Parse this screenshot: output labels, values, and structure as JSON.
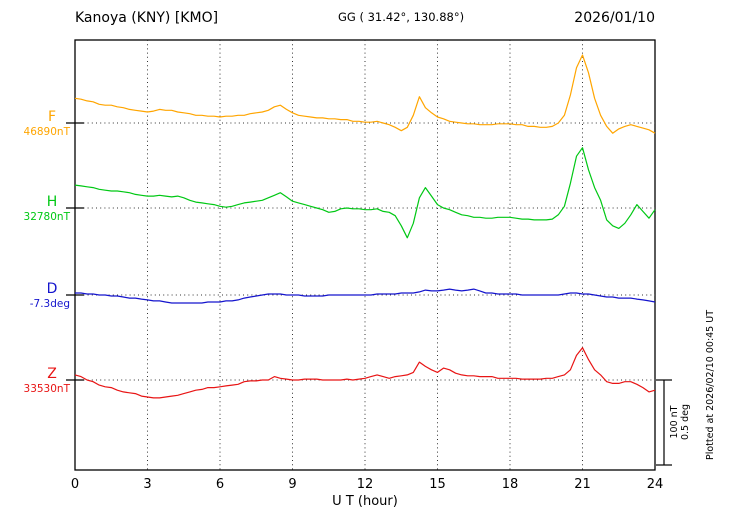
{
  "header": {
    "station": "Kanoya (KNY)  [KMO]",
    "coords": "GG ( 31.42°, 130.88°)",
    "date": "2026/01/10"
  },
  "axes": {
    "x_label": "U T (hour)"
  },
  "scale_bar": {
    "line1": "100 nT",
    "line2": "0.5 deg"
  },
  "footer_note": "Plotted at 2026/02/10 00:45 UT",
  "colors": {
    "F": "#ffa500",
    "H": "#00c814",
    "D": "#1414cd",
    "Z": "#e81414",
    "grid": "#333333",
    "frame": "#000000"
  },
  "chart_data": {
    "type": "line",
    "title": "Kanoya (KNY) [KMO] geomagnetic field variations 2026/01/10",
    "xlabel": "U T (hour)",
    "x_ticks": [
      0,
      3,
      6,
      9,
      12,
      15,
      18,
      21,
      24
    ],
    "x_range_hours": [
      0,
      24
    ],
    "sample_step_hours": 0.25,
    "grid": "dotted vertical every 3 h; dotted horizontal baseline per component",
    "legend_position": "left margin component labels",
    "scale_per_division": {
      "nT": 100,
      "deg": 0.5
    },
    "series": [
      {
        "name": "F",
        "unit": "nT",
        "baseline_value": 46890,
        "baseline_label": "46890nT",
        "color_key": "F",
        "offsets_from_baseline": [
          29,
          28,
          26,
          25,
          22,
          21,
          21,
          19,
          18,
          16,
          15,
          14,
          13,
          14,
          16,
          15,
          15,
          13,
          12,
          11,
          9,
          9,
          8,
          8,
          7,
          8,
          8,
          9,
          9,
          11,
          12,
          13,
          15,
          19,
          21,
          16,
          12,
          9,
          8,
          7,
          6,
          6,
          5,
          5,
          4,
          4,
          2,
          2,
          1,
          1,
          2,
          0,
          -2,
          -5,
          -9,
          -5,
          9,
          31,
          18,
          12,
          7,
          5,
          2,
          1,
          0,
          -1,
          -1,
          -2,
          -2,
          -2,
          -1,
          -1,
          -1,
          -2,
          -2,
          -4,
          -4,
          -5,
          -5,
          -4,
          0,
          9,
          33,
          65,
          80,
          59,
          29,
          9,
          -4,
          -12,
          -7,
          -4,
          -2,
          -4,
          -6,
          -8,
          -12
        ]
      },
      {
        "name": "H",
        "unit": "nT",
        "baseline_value": 32780,
        "baseline_label": "32780nT",
        "color_key": "H",
        "offsets_from_baseline": [
          27,
          26,
          25,
          24,
          22,
          21,
          20,
          20,
          19,
          18,
          16,
          15,
          14,
          14,
          15,
          14,
          13,
          14,
          12,
          9,
          7,
          6,
          5,
          4,
          2,
          1,
          2,
          4,
          6,
          7,
          8,
          9,
          12,
          15,
          18,
          13,
          8,
          6,
          4,
          2,
          0,
          -2,
          -5,
          -4,
          -1,
          0,
          -1,
          -1,
          -2,
          -2,
          -1,
          -4,
          -5,
          -9,
          -21,
          -35,
          -18,
          12,
          24,
          14,
          4,
          0,
          -2,
          -5,
          -8,
          -9,
          -11,
          -11,
          -12,
          -12,
          -11,
          -11,
          -11,
          -12,
          -13,
          -13,
          -14,
          -14,
          -14,
          -13,
          -8,
          2,
          29,
          61,
          71,
          45,
          24,
          9,
          -14,
          -21,
          -24,
          -18,
          -8,
          4,
          -4,
          -12,
          -2
        ]
      },
      {
        "name": "D",
        "unit": "deg",
        "baseline_value": -7.3,
        "baseline_label": "-7.3deg",
        "color_key": "D",
        "offsets_from_baseline": [
          0.012,
          0.012,
          0.006,
          0.006,
          0,
          0,
          -0.006,
          -0.006,
          -0.012,
          -0.018,
          -0.018,
          -0.024,
          -0.029,
          -0.035,
          -0.035,
          -0.041,
          -0.047,
          -0.047,
          -0.047,
          -0.047,
          -0.047,
          -0.047,
          -0.041,
          -0.041,
          -0.041,
          -0.035,
          -0.035,
          -0.029,
          -0.018,
          -0.012,
          -0.006,
          0,
          0.006,
          0.006,
          0.006,
          0,
          0,
          0,
          -0.006,
          -0.006,
          -0.006,
          -0.006,
          0,
          0,
          0,
          0,
          0,
          0,
          0,
          0,
          0.006,
          0.006,
          0.006,
          0.006,
          0.012,
          0.012,
          0.012,
          0.018,
          0.029,
          0.024,
          0.024,
          0.029,
          0.035,
          0.029,
          0.024,
          0.029,
          0.035,
          0.024,
          0.012,
          0.012,
          0.006,
          0.006,
          0.006,
          0.006,
          0,
          0,
          0,
          0,
          0,
          0,
          0,
          0.006,
          0.012,
          0.012,
          0.006,
          0.006,
          0,
          -0.006,
          -0.012,
          -0.012,
          -0.018,
          -0.018,
          -0.018,
          -0.024,
          -0.029,
          -0.035,
          -0.041
        ]
      },
      {
        "name": "Z",
        "unit": "nT",
        "baseline_value": 33530,
        "baseline_label": "33530nT",
        "color_key": "Z",
        "offsets_from_baseline": [
          6,
          4,
          0,
          -2,
          -6,
          -8,
          -9,
          -12,
          -14,
          -15,
          -16,
          -19,
          -20,
          -21,
          -21,
          -20,
          -19,
          -18,
          -16,
          -14,
          -12,
          -11,
          -9,
          -9,
          -8,
          -7,
          -6,
          -5,
          -2,
          -1,
          -1,
          0,
          0,
          4,
          2,
          1,
          0,
          0,
          1,
          1,
          1,
          0,
          0,
          0,
          0,
          1,
          0,
          1,
          2,
          4,
          6,
          4,
          2,
          4,
          5,
          6,
          9,
          21,
          16,
          12,
          9,
          14,
          12,
          8,
          6,
          5,
          5,
          4,
          4,
          4,
          2,
          2,
          2,
          2,
          1,
          1,
          1,
          1,
          2,
          2,
          4,
          6,
          12,
          29,
          38,
          24,
          12,
          6,
          -2,
          -4,
          -4,
          -2,
          -2,
          -5,
          -9,
          -14,
          -12
        ]
      }
    ]
  }
}
